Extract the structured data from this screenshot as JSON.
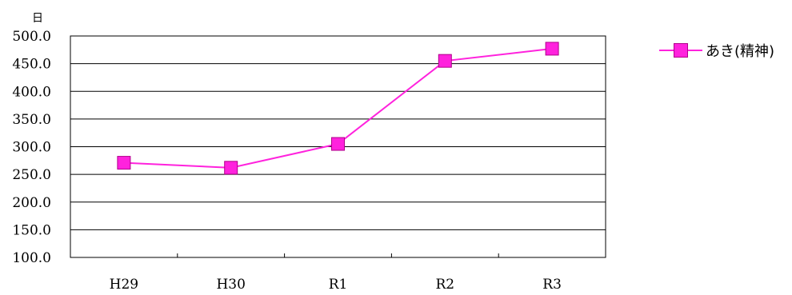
{
  "chart_data": {
    "type": "line",
    "ylabel": "日",
    "categories": [
      "H29",
      "H30",
      "R1",
      "R2",
      "R3"
    ],
    "series": [
      {
        "name": "あき(精神)",
        "values": [
          271,
          262,
          305,
          455,
          477
        ],
        "color": "#ff22dd"
      }
    ],
    "ylim": [
      100,
      500
    ],
    "yticks": [
      "100.0",
      "150.0",
      "200.0",
      "250.0",
      "300.0",
      "350.0",
      "400.0",
      "450.0",
      "500.0"
    ],
    "grid": true,
    "legend": "right"
  }
}
